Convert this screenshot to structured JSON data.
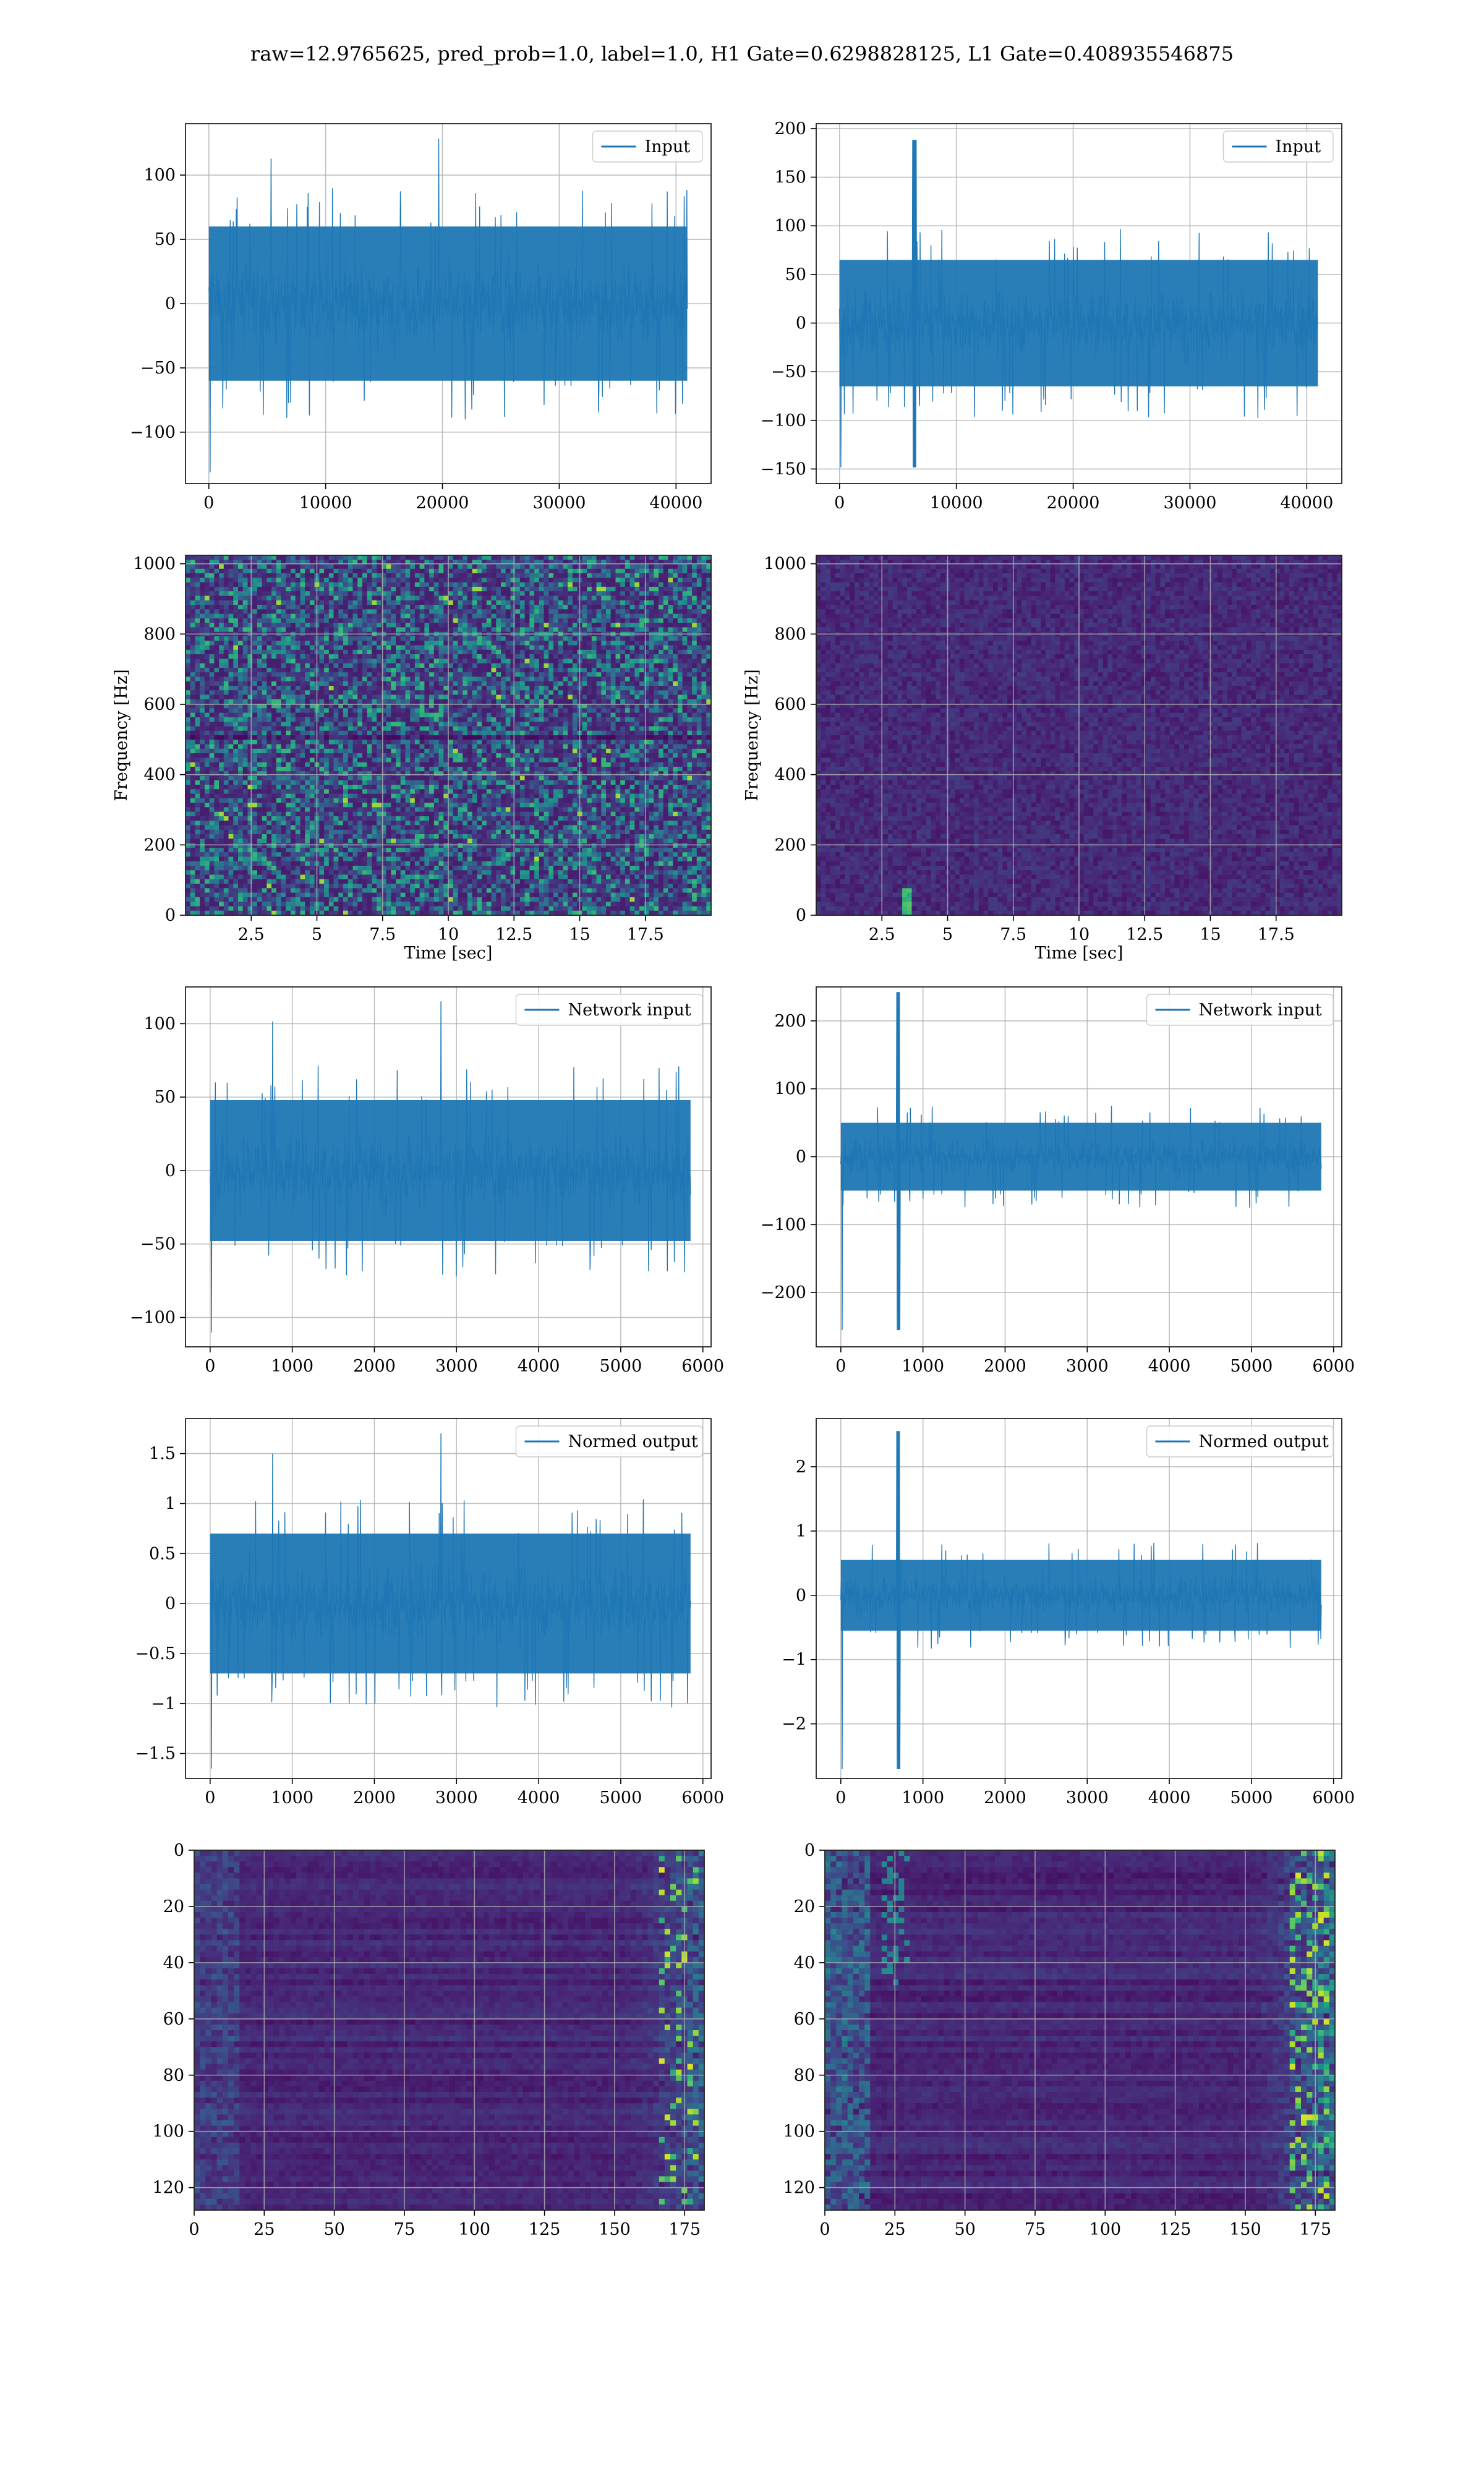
{
  "title": "raw=12.9765625, pred_prob=1.0, label=1.0, H1 Gate=0.6298828125, L1 Gate=0.408935546875",
  "colors": {
    "line": "#1f77b4",
    "grid": "#b0b0b0",
    "viridis_low": "#440154",
    "viridis_mid": "#21918c",
    "viridis_high": "#fde725"
  },
  "chart_data": [
    {
      "id": "input-h1",
      "type": "line",
      "legend": "Input",
      "legend_position": "top-right",
      "xlim": [
        -2000,
        43000
      ],
      "ylim": [
        -140,
        140
      ],
      "xticks": [
        0,
        10000,
        20000,
        30000,
        40000
      ],
      "yticks": [
        -100,
        -50,
        0,
        50,
        100
      ],
      "xlabel": "",
      "ylabel": "",
      "series": [
        {
          "x_range": [
            0,
            40960
          ],
          "band": [
            -60,
            60
          ],
          "peak_max": 128,
          "peak_min": -131
        }
      ],
      "grid": true
    },
    {
      "id": "input-l1",
      "type": "line",
      "legend": "Input",
      "legend_position": "top-right",
      "xlim": [
        -2000,
        43000
      ],
      "ylim": [
        -165,
        205
      ],
      "xticks": [
        0,
        10000,
        20000,
        30000,
        40000
      ],
      "yticks": [
        -150,
        -100,
        -50,
        0,
        50,
        100,
        150,
        200
      ],
      "xlabel": "",
      "ylabel": "",
      "series": [
        {
          "x_range": [
            0,
            40960
          ],
          "band": [
            -65,
            65
          ],
          "peak_max": 188,
          "peak_min": -148,
          "peak_x": 6400
        }
      ],
      "grid": true
    },
    {
      "id": "spectrogram-h1",
      "type": "heatmap",
      "xlabel": "Time [sec]",
      "ylabel": "Frequency [Hz]",
      "xlim": [
        0,
        20
      ],
      "ylim": [
        0,
        1024
      ],
      "xticks": [
        2.5,
        5.0,
        7.5,
        10.0,
        12.5,
        15.0,
        17.5
      ],
      "yticks": [
        0,
        200,
        400,
        600,
        800,
        1000
      ],
      "colormap": "viridis",
      "grid": true
    },
    {
      "id": "spectrogram-l1",
      "type": "heatmap",
      "xlabel": "Time [sec]",
      "ylabel": "Frequency [Hz]",
      "xlim": [
        0,
        20
      ],
      "ylim": [
        0,
        1024
      ],
      "xticks": [
        2.5,
        5.0,
        7.5,
        10.0,
        12.5,
        15.0,
        17.5
      ],
      "yticks": [
        0,
        200,
        400,
        600,
        800,
        1000
      ],
      "colormap": "viridis",
      "grid": true
    },
    {
      "id": "network-input-h1",
      "type": "line",
      "legend": "Network input",
      "legend_position": "top-right",
      "xlim": [
        -300,
        6100
      ],
      "ylim": [
        -120,
        125
      ],
      "xticks": [
        0,
        1000,
        2000,
        3000,
        4000,
        5000,
        6000
      ],
      "yticks": [
        -100,
        -50,
        0,
        50,
        100
      ],
      "xlabel": "",
      "ylabel": "",
      "series": [
        {
          "x_range": [
            0,
            5850
          ],
          "band": [
            -48,
            48
          ],
          "peak_max": 115,
          "peak_min": -110
        }
      ],
      "grid": true
    },
    {
      "id": "network-input-l1",
      "type": "line",
      "legend": "Network input",
      "legend_position": "top-right",
      "xlim": [
        -300,
        6100
      ],
      "ylim": [
        -280,
        250
      ],
      "xticks": [
        0,
        1000,
        2000,
        3000,
        4000,
        5000,
        6000
      ],
      "yticks": [
        -200,
        -100,
        0,
        100,
        200
      ],
      "xlabel": "",
      "ylabel": "",
      "series": [
        {
          "x_range": [
            0,
            5850
          ],
          "band": [
            -50,
            50
          ],
          "peak_max": 242,
          "peak_min": -255,
          "peak_x": 700
        }
      ],
      "grid": true
    },
    {
      "id": "normed-output-h1",
      "type": "line",
      "legend": "Normed output",
      "legend_position": "top-right",
      "xlim": [
        -300,
        6100
      ],
      "ylim": [
        -1.75,
        1.85
      ],
      "xticks": [
        0,
        1000,
        2000,
        3000,
        4000,
        5000,
        6000
      ],
      "yticks": [
        -1.5,
        -1.0,
        -0.5,
        0.0,
        0.5,
        1.0,
        1.5
      ],
      "xlabel": "",
      "ylabel": "",
      "series": [
        {
          "x_range": [
            0,
            5850
          ],
          "band": [
            -0.7,
            0.7
          ],
          "peak_max": 1.7,
          "peak_min": -1.65
        }
      ],
      "grid": true
    },
    {
      "id": "normed-output-l1",
      "type": "line",
      "legend": "Normed output",
      "legend_position": "top-right",
      "xlim": [
        -300,
        6100
      ],
      "ylim": [
        -2.85,
        2.75
      ],
      "xticks": [
        0,
        1000,
        2000,
        3000,
        4000,
        5000,
        6000
      ],
      "yticks": [
        -2,
        -1,
        0,
        1,
        2
      ],
      "xlabel": "",
      "ylabel": "",
      "series": [
        {
          "x_range": [
            0,
            5850
          ],
          "band": [
            -0.55,
            0.55
          ],
          "peak_max": 2.55,
          "peak_min": -2.7,
          "peak_x": 700
        }
      ],
      "grid": true
    },
    {
      "id": "activations-h1",
      "type": "heatmap",
      "xlim": [
        0,
        182
      ],
      "ylim": [
        0,
        128
      ],
      "y_inverted": true,
      "xticks": [
        0,
        25,
        50,
        75,
        100,
        125,
        150,
        175
      ],
      "yticks": [
        0,
        20,
        40,
        60,
        80,
        100,
        120
      ],
      "xlabel": "",
      "ylabel": "",
      "colormap": "viridis",
      "grid": true
    },
    {
      "id": "activations-l1",
      "type": "heatmap",
      "xlim": [
        0,
        182
      ],
      "ylim": [
        0,
        128
      ],
      "y_inverted": true,
      "xticks": [
        0,
        25,
        50,
        75,
        100,
        125,
        150,
        175
      ],
      "yticks": [
        0,
        20,
        40,
        60,
        80,
        100,
        120
      ],
      "xlabel": "",
      "ylabel": "",
      "colormap": "viridis",
      "grid": true
    }
  ]
}
